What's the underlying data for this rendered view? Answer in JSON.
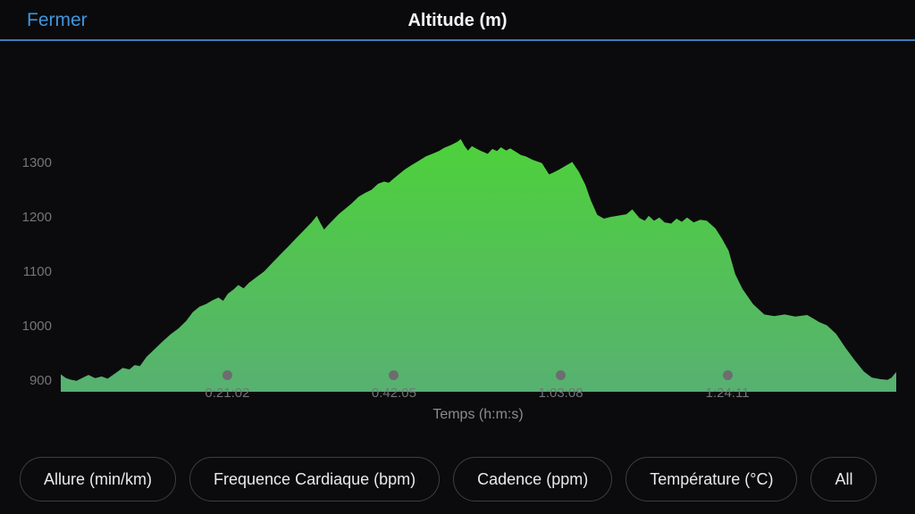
{
  "header": {
    "close_label": "Fermer",
    "title": "Altitude (m)"
  },
  "colors": {
    "accent_blue": "#3f95dd",
    "header_divider": "#3e7cb5",
    "area_top": "#4ed13b",
    "area_bottom": "#57b171",
    "axis_text": "#757578",
    "background": "#0b0b0d"
  },
  "chart_data": {
    "type": "area",
    "title": "Altitude (m)",
    "xlabel": "Temps (h:m:s)",
    "ylabel": "",
    "grid": false,
    "legend": "none",
    "x_tick_labels": [
      "0:21:02",
      "0:42:05",
      "1:03:08",
      "1:24:11"
    ],
    "x_tick_seconds": [
      1262,
      2525,
      3788,
      5051
    ],
    "y_ticks": [
      900,
      1000,
      1100,
      1200,
      1300
    ],
    "x_range_seconds": [
      0,
      6330
    ],
    "y_range": [
      880,
      1352
    ],
    "gradient": {
      "top": "#4ed13b",
      "bottom": "#57b171"
    },
    "series": [
      {
        "name": "Altitude (m)",
        "points": [
          [
            0,
            912
          ],
          [
            40,
            905
          ],
          [
            80,
            902
          ],
          [
            120,
            900
          ],
          [
            160,
            905
          ],
          [
            210,
            911
          ],
          [
            260,
            905
          ],
          [
            310,
            908
          ],
          [
            355,
            904
          ],
          [
            420,
            915
          ],
          [
            470,
            924
          ],
          [
            520,
            921
          ],
          [
            560,
            929
          ],
          [
            600,
            927
          ],
          [
            650,
            944
          ],
          [
            710,
            958
          ],
          [
            770,
            972
          ],
          [
            830,
            985
          ],
          [
            890,
            996
          ],
          [
            950,
            1010
          ],
          [
            1000,
            1026
          ],
          [
            1050,
            1036
          ],
          [
            1100,
            1041
          ],
          [
            1150,
            1048
          ],
          [
            1195,
            1053
          ],
          [
            1230,
            1047
          ],
          [
            1265,
            1060
          ],
          [
            1310,
            1068
          ],
          [
            1345,
            1076
          ],
          [
            1385,
            1070
          ],
          [
            1425,
            1080
          ],
          [
            1480,
            1090
          ],
          [
            1540,
            1101
          ],
          [
            1600,
            1116
          ],
          [
            1660,
            1131
          ],
          [
            1720,
            1146
          ],
          [
            1780,
            1161
          ],
          [
            1840,
            1176
          ],
          [
            1900,
            1191
          ],
          [
            1940,
            1203
          ],
          [
            1965,
            1191
          ],
          [
            1995,
            1178
          ],
          [
            2025,
            1186
          ],
          [
            2065,
            1196
          ],
          [
            2105,
            1206
          ],
          [
            2155,
            1216
          ],
          [
            2205,
            1226
          ],
          [
            2255,
            1238
          ],
          [
            2305,
            1245
          ],
          [
            2355,
            1251
          ],
          [
            2405,
            1262
          ],
          [
            2450,
            1266
          ],
          [
            2485,
            1264
          ],
          [
            2525,
            1272
          ],
          [
            2565,
            1280
          ],
          [
            2605,
            1288
          ],
          [
            2655,
            1296
          ],
          [
            2705,
            1303
          ],
          [
            2765,
            1312
          ],
          [
            2825,
            1318
          ],
          [
            2865,
            1322
          ],
          [
            2905,
            1328
          ],
          [
            2955,
            1333
          ],
          [
            3005,
            1339
          ],
          [
            3030,
            1344
          ],
          [
            3060,
            1331
          ],
          [
            3085,
            1323
          ],
          [
            3115,
            1331
          ],
          [
            3145,
            1327
          ],
          [
            3185,
            1322
          ],
          [
            3235,
            1317
          ],
          [
            3270,
            1326
          ],
          [
            3305,
            1322
          ],
          [
            3335,
            1329
          ],
          [
            3375,
            1323
          ],
          [
            3405,
            1327
          ],
          [
            3445,
            1321
          ],
          [
            3485,
            1315
          ],
          [
            3525,
            1312
          ],
          [
            3575,
            1306
          ],
          [
            3645,
            1300
          ],
          [
            3700,
            1279
          ],
          [
            3735,
            1283
          ],
          [
            3775,
            1288
          ],
          [
            3825,
            1295
          ],
          [
            3875,
            1302
          ],
          [
            3925,
            1284
          ],
          [
            3975,
            1260
          ],
          [
            4015,
            1232
          ],
          [
            4065,
            1205
          ],
          [
            4115,
            1198
          ],
          [
            4165,
            1201
          ],
          [
            4215,
            1203
          ],
          [
            4285,
            1206
          ],
          [
            4330,
            1215
          ],
          [
            4385,
            1199
          ],
          [
            4425,
            1194
          ],
          [
            4455,
            1203
          ],
          [
            4495,
            1194
          ],
          [
            4535,
            1200
          ],
          [
            4575,
            1191
          ],
          [
            4625,
            1189
          ],
          [
            4665,
            1198
          ],
          [
            4705,
            1192
          ],
          [
            4745,
            1200
          ],
          [
            4795,
            1191
          ],
          [
            4845,
            1196
          ],
          [
            4895,
            1194
          ],
          [
            4960,
            1180
          ],
          [
            5010,
            1161
          ],
          [
            5060,
            1139
          ],
          [
            5110,
            1096
          ],
          [
            5165,
            1069
          ],
          [
            5245,
            1041
          ],
          [
            5330,
            1022
          ],
          [
            5405,
            1019
          ],
          [
            5485,
            1022
          ],
          [
            5565,
            1018
          ],
          [
            5655,
            1021
          ],
          [
            5705,
            1014
          ],
          [
            5745,
            1008
          ],
          [
            5805,
            1002
          ],
          [
            5875,
            986
          ],
          [
            5945,
            961
          ],
          [
            6015,
            938
          ],
          [
            6085,
            917
          ],
          [
            6145,
            906
          ],
          [
            6215,
            903
          ],
          [
            6265,
            902
          ],
          [
            6295,
            906
          ],
          [
            6315,
            912
          ],
          [
            6330,
            916
          ]
        ]
      }
    ]
  },
  "metric_buttons": [
    {
      "label": "Allure (min/km)"
    },
    {
      "label": "Frequence Cardiaque (bpm)"
    },
    {
      "label": "Cadence (ppm)"
    },
    {
      "label": "Température (°C)"
    },
    {
      "label": "All"
    }
  ]
}
